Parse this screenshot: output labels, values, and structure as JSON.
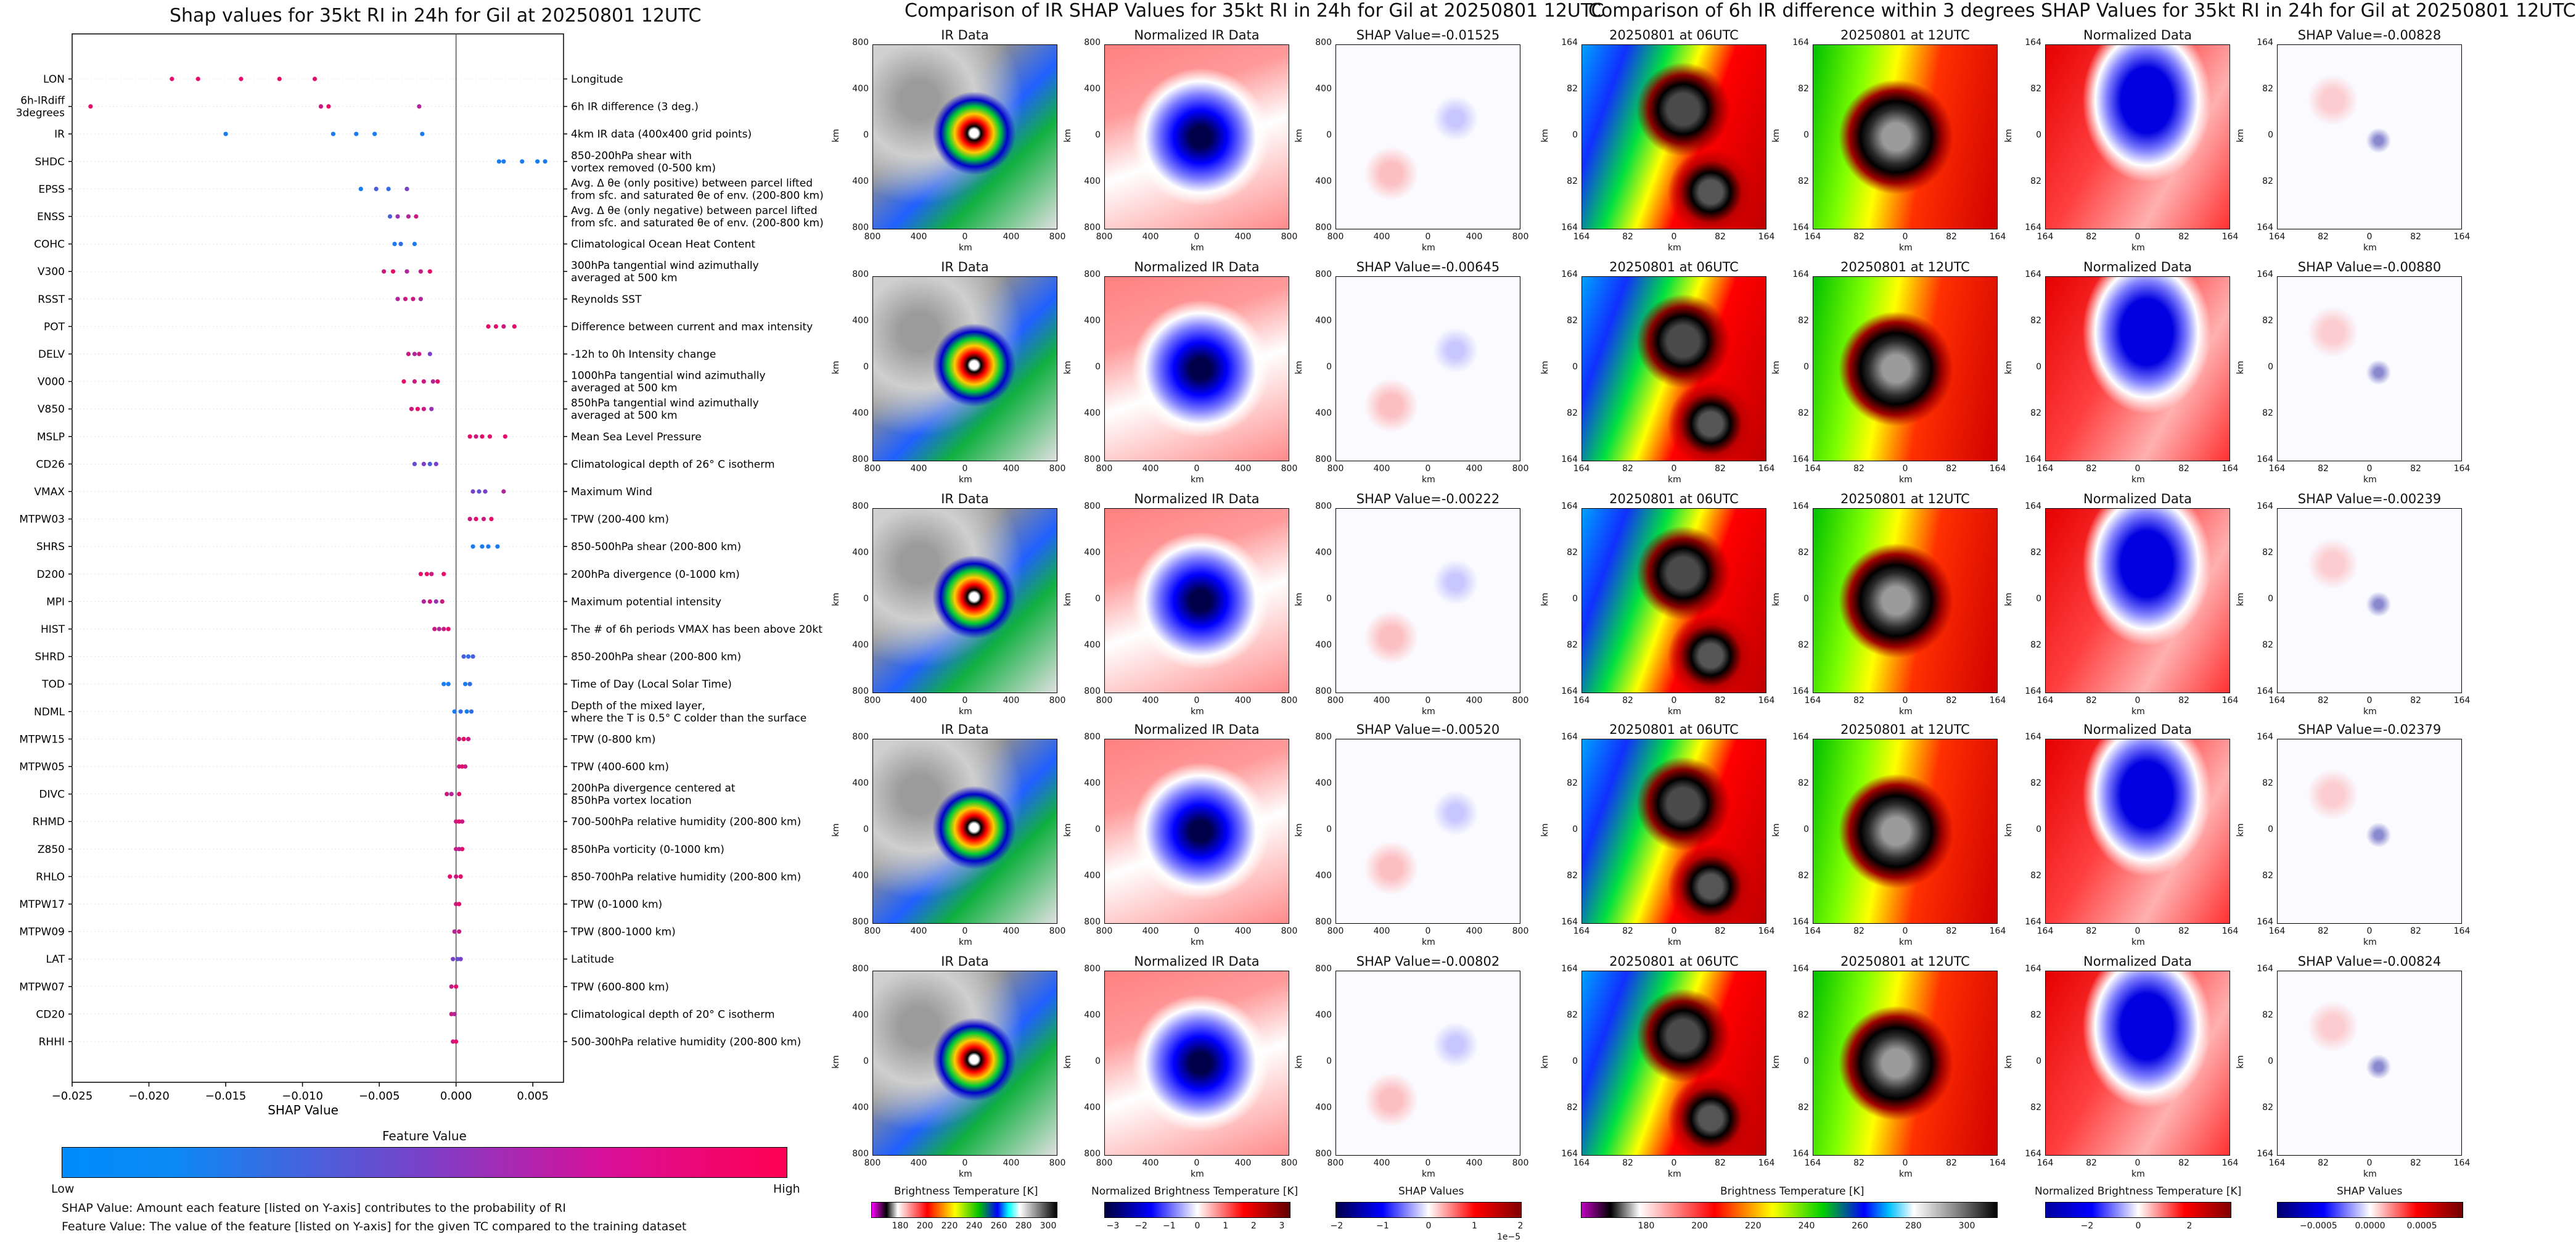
{
  "left": {
    "title": "Shap values for 35kt RI in 24h for Gil at 20250801 12UTC",
    "xlabel": "SHAP Value",
    "xticks": [
      "−0.025",
      "−0.020",
      "−0.015",
      "−0.010",
      "−0.005",
      "0.000",
      "0.005"
    ],
    "features": [
      {
        "code": "LON",
        "desc": "Longitude"
      },
      {
        "code": "6h-IRdiff\n3degrees",
        "desc": "6h IR difference (3 deg.)"
      },
      {
        "code": "IR",
        "desc": "4km IR data (400x400 grid points)"
      },
      {
        "code": "SHDC",
        "desc": "850-200hPa shear with\nvortex removed (0-500 km)"
      },
      {
        "code": "EPSS",
        "desc": "Avg. Δ θe (only positive) between parcel lifted\nfrom sfc. and saturated θe of env. (200-800 km)"
      },
      {
        "code": "ENSS",
        "desc": "Avg. Δ θe (only negative) between parcel lifted\nfrom sfc. and saturated θe of env. (200-800 km)"
      },
      {
        "code": "COHC",
        "desc": "Climatological Ocean Heat Content"
      },
      {
        "code": "V300",
        "desc": "300hPa tangential wind azimuthally\naveraged at 500 km"
      },
      {
        "code": "RSST",
        "desc": "Reynolds SST"
      },
      {
        "code": "POT",
        "desc": "Difference between current and max intensity"
      },
      {
        "code": "DELV",
        "desc": "-12h to 0h Intensity change"
      },
      {
        "code": "V000",
        "desc": "1000hPa tangential wind azimuthally\naveraged at 500 km"
      },
      {
        "code": "V850",
        "desc": "850hPa tangential wind azimuthally\naveraged at 500 km"
      },
      {
        "code": "MSLP",
        "desc": "Mean Sea Level Pressure"
      },
      {
        "code": "CD26",
        "desc": "Climatological depth of 26° C isotherm"
      },
      {
        "code": "VMAX",
        "desc": "Maximum Wind"
      },
      {
        "code": "MTPW03",
        "desc": "TPW (200-400 km)"
      },
      {
        "code": "SHRS",
        "desc": "850-500hPa shear (200-800 km)"
      },
      {
        "code": "D200",
        "desc": "200hPa divergence (0-1000 km)"
      },
      {
        "code": "MPI",
        "desc": "Maximum potential intensity"
      },
      {
        "code": "HIST",
        "desc": "The # of 6h periods VMAX has been above 20kt"
      },
      {
        "code": "SHRD",
        "desc": "850-200hPa shear (200-800 km)"
      },
      {
        "code": "TOD",
        "desc": "Time of Day (Local Solar Time)"
      },
      {
        "code": "NDML",
        "desc": "Depth of the mixed layer,\nwhere the T is 0.5° C colder than the surface"
      },
      {
        "code": "MTPW15",
        "desc": "TPW (0-800 km)"
      },
      {
        "code": "MTPW05",
        "desc": "TPW (400-600 km)"
      },
      {
        "code": "DIVC",
        "desc": "200hPa divergence centered at\n850hPa vortex location"
      },
      {
        "code": "RHMD",
        "desc": "700-500hPa relative humidity (200-800 km)"
      },
      {
        "code": "Z850",
        "desc": "850hPa vorticity (0-1000 km)"
      },
      {
        "code": "RHLO",
        "desc": "850-700hPa relative humidity (200-800 km)"
      },
      {
        "code": "MTPW17",
        "desc": "TPW (0-1000 km)"
      },
      {
        "code": "MTPW09",
        "desc": "TPW (800-1000 km)"
      },
      {
        "code": "LAT",
        "desc": "Latitude"
      },
      {
        "code": "MTPW07",
        "desc": "TPW (600-800 km)"
      },
      {
        "code": "CD20",
        "desc": "Climatological depth of 20° C isotherm"
      },
      {
        "code": "RHHI",
        "desc": "500-300hPa relative humidity (200-800 km)"
      }
    ],
    "feature_value_title": "Feature Value",
    "low_label": "Low",
    "high_label": "High",
    "note1": "SHAP Value: Amount each feature [listed on Y-axis] contributes to the probability of RI",
    "note2": "Feature Value: The value of the feature [listed on Y-axis] for the given TC compared to the training dataset"
  },
  "chart_data": {
    "type": "scatter",
    "title": "Shap values for 35kt RI in 24h for Gil at 20250801 12UTC",
    "xlabel": "SHAP Value",
    "xlim": [
      -0.025,
      0.007
    ],
    "colors": {
      "low": "#008bfb",
      "mid": "#7b40c8",
      "high": "#ff0052"
    },
    "categories": [
      "LON",
      "6h-IRdiff 3degrees",
      "IR",
      "SHDC",
      "EPSS",
      "ENSS",
      "COHC",
      "V300",
      "RSST",
      "POT",
      "DELV",
      "V000",
      "V850",
      "MSLP",
      "CD26",
      "VMAX",
      "MTPW03",
      "SHRS",
      "D200",
      "MPI",
      "HIST",
      "SHRD",
      "TOD",
      "NDML",
      "MTPW15",
      "MTPW05",
      "DIVC",
      "RHMD",
      "Z850",
      "RHLO",
      "MTPW17",
      "MTPW09",
      "LAT",
      "MTPW07",
      "CD20",
      "RHHI"
    ],
    "points": [
      {
        "f": 0,
        "x": [
          -0.0185,
          -0.0168,
          -0.014,
          -0.0115,
          -0.0092
        ],
        "v": [
          0.9,
          0.9,
          0.9,
          0.9,
          0.9
        ]
      },
      {
        "f": 1,
        "x": [
          -0.0238,
          -0.0088,
          -0.0083,
          -0.0024
        ],
        "v": [
          0.9,
          0.8,
          0.9,
          0.7
        ]
      },
      {
        "f": 2,
        "x": [
          -0.015,
          -0.008,
          -0.0065,
          -0.0053,
          -0.0022
        ],
        "v": [
          0.1,
          0.1,
          0.1,
          0.1,
          0.1
        ]
      },
      {
        "f": 3,
        "x": [
          0.0028,
          0.0031,
          0.0043,
          0.0053,
          0.0058
        ],
        "v": [
          0.1,
          0.1,
          0.1,
          0.1,
          0.1
        ]
      },
      {
        "f": 4,
        "x": [
          -0.0062,
          -0.0052,
          -0.0044,
          -0.0032
        ],
        "v": [
          0.1,
          0.3,
          0.2,
          0.5
        ]
      },
      {
        "f": 5,
        "x": [
          -0.0043,
          -0.0038,
          -0.0031,
          -0.0026
        ],
        "v": [
          0.3,
          0.6,
          0.7,
          0.8
        ]
      },
      {
        "f": 6,
        "x": [
          -0.004,
          -0.0036,
          -0.0027
        ],
        "v": [
          0.1,
          0.2,
          0.1
        ]
      },
      {
        "f": 7,
        "x": [
          -0.0047,
          -0.0041,
          -0.0032,
          -0.0023,
          -0.0017
        ],
        "v": [
          0.8,
          0.9,
          0.7,
          0.8,
          0.9
        ]
      },
      {
        "f": 8,
        "x": [
          -0.0038,
          -0.0033,
          -0.0028,
          -0.0023
        ],
        "v": [
          0.7,
          0.8,
          0.8,
          0.7
        ]
      },
      {
        "f": 9,
        "x": [
          0.0021,
          0.0026,
          0.0031,
          0.0038
        ],
        "v": [
          0.9,
          0.9,
          0.8,
          0.9
        ]
      },
      {
        "f": 10,
        "x": [
          -0.0031,
          -0.0027,
          -0.0024,
          -0.0017
        ],
        "v": [
          0.8,
          0.7,
          0.8,
          0.5
        ]
      },
      {
        "f": 11,
        "x": [
          -0.0034,
          -0.0027,
          -0.0021,
          -0.0015,
          -0.0012
        ],
        "v": [
          0.9,
          0.8,
          0.8,
          0.7,
          0.9
        ]
      },
      {
        "f": 12,
        "x": [
          -0.0029,
          -0.0025,
          -0.0021,
          -0.0016
        ],
        "v": [
          0.8,
          0.9,
          0.8,
          0.6
        ]
      },
      {
        "f": 13,
        "x": [
          0.0009,
          0.0013,
          0.0017,
          0.0022,
          0.0032
        ],
        "v": [
          0.9,
          0.8,
          0.9,
          0.9,
          0.9
        ]
      },
      {
        "f": 14,
        "x": [
          -0.0027,
          -0.0021,
          -0.0017,
          -0.0013
        ],
        "v": [
          0.4,
          0.5,
          0.3,
          0.5
        ]
      },
      {
        "f": 15,
        "x": [
          0.0011,
          0.0015,
          0.0019,
          0.0031
        ],
        "v": [
          0.5,
          0.4,
          0.5,
          0.7
        ]
      },
      {
        "f": 16,
        "x": [
          0.0009,
          0.0013,
          0.0018,
          0.0023
        ],
        "v": [
          0.8,
          0.9,
          0.8,
          0.9
        ]
      },
      {
        "f": 17,
        "x": [
          0.0011,
          0.0017,
          0.0021,
          0.0027
        ],
        "v": [
          0.1,
          0.1,
          0.1,
          0.1
        ]
      },
      {
        "f": 18,
        "x": [
          -0.0023,
          -0.0019,
          -0.0016,
          -0.0008
        ],
        "v": [
          0.9,
          0.9,
          0.8,
          0.9
        ]
      },
      {
        "f": 19,
        "x": [
          -0.0021,
          -0.0017,
          -0.0013,
          -0.0009
        ],
        "v": [
          0.7,
          0.8,
          0.6,
          0.8
        ]
      },
      {
        "f": 20,
        "x": [
          -0.0014,
          -0.0011,
          -0.0008,
          -0.0005
        ],
        "v": [
          0.8,
          0.7,
          0.8,
          0.9
        ]
      },
      {
        "f": 21,
        "x": [
          0.0005,
          0.0008,
          0.0011
        ],
        "v": [
          0.3,
          0.2,
          0.3
        ]
      },
      {
        "f": 22,
        "x": [
          -0.0008,
          -0.0005,
          0.0006,
          0.0009
        ],
        "v": [
          0.1,
          0.1,
          0.1,
          0.2
        ]
      },
      {
        "f": 23,
        "x": [
          -0.0001,
          0.0003,
          0.0007,
          0.001
        ],
        "v": [
          0.1,
          0.2,
          0.1,
          0.2
        ]
      },
      {
        "f": 24,
        "x": [
          0.0002,
          0.0005,
          0.0008
        ],
        "v": [
          0.8,
          0.9,
          0.8
        ]
      },
      {
        "f": 25,
        "x": [
          0.0002,
          0.0004,
          0.0006
        ],
        "v": [
          0.8,
          0.9,
          0.8
        ]
      },
      {
        "f": 26,
        "x": [
          -0.0006,
          -0.0003,
          0.0002
        ],
        "v": [
          0.8,
          0.7,
          0.9
        ]
      },
      {
        "f": 27,
        "x": [
          0.0,
          0.0002,
          0.0004
        ],
        "v": [
          0.8,
          0.9,
          0.8
        ]
      },
      {
        "f": 28,
        "x": [
          0.0,
          0.0002,
          0.0004
        ],
        "v": [
          0.8,
          0.7,
          0.9
        ]
      },
      {
        "f": 29,
        "x": [
          -0.0004,
          0.0,
          0.0003
        ],
        "v": [
          0.9,
          0.8,
          0.9
        ]
      },
      {
        "f": 30,
        "x": [
          0.0,
          0.0002
        ],
        "v": [
          0.8,
          0.9
        ]
      },
      {
        "f": 31,
        "x": [
          -0.0001,
          0.0002
        ],
        "v": [
          0.7,
          0.8
        ]
      },
      {
        "f": 32,
        "x": [
          -0.0002,
          0.0001,
          0.0003
        ],
        "v": [
          0.5,
          0.4,
          0.5
        ]
      },
      {
        "f": 33,
        "x": [
          -0.0003,
          0.0
        ],
        "v": [
          0.8,
          0.9
        ]
      },
      {
        "f": 34,
        "x": [
          -0.0003,
          -0.0001
        ],
        "v": [
          0.8,
          0.7
        ]
      },
      {
        "f": 35,
        "x": [
          -0.0002,
          0.0
        ],
        "v": [
          0.8,
          0.9
        ]
      }
    ]
  },
  "middle": {
    "title": "Comparison of IR SHAP Values for 35kt RI in 24h for Gil at 20250801 12UTC",
    "col_titles": [
      "IR Data",
      "Normalized IR Data"
    ],
    "shap_values": [
      "SHAP Value=-0.01525",
      "SHAP Value=-0.00645",
      "SHAP Value=-0.00222",
      "SHAP Value=-0.00520",
      "SHAP Value=-0.00802"
    ],
    "yticks": [
      "800",
      "400",
      "0",
      "400",
      "800"
    ],
    "xticks": [
      "800",
      "400",
      "0",
      "400",
      "800"
    ],
    "axis_label": "km",
    "cbar_labels": [
      "Brightness Temperature [K]",
      "Normalized Brightness Temperature [K]",
      "SHAP Values"
    ],
    "cbar1_ticks": [
      "180",
      "200",
      "220",
      "240",
      "260",
      "280",
      "300"
    ],
    "cbar2_ticks": [
      "−3",
      "−2",
      "−1",
      "0",
      "1",
      "2",
      "3"
    ],
    "cbar3_ticks": [
      "−2",
      "−1",
      "0",
      "1",
      "2"
    ],
    "cbar3_exp": "1e−5"
  },
  "right": {
    "title": "Comparison of 6h IR difference within 3 degrees SHAP Values for 35kt RI in 24h for Gil at 20250801 12UTC",
    "col_titles": [
      "20250801 at 06UTC",
      "20250801 at 12UTC",
      "Normalized Data"
    ],
    "shap_values": [
      "SHAP Value=-0.00828",
      "SHAP Value=-0.00880",
      "SHAP Value=-0.00239",
      "SHAP Value=-0.02379",
      "SHAP Value=-0.00824"
    ],
    "yticks": [
      "164",
      "82",
      "0",
      "82",
      "164"
    ],
    "xticks": [
      "164",
      "82",
      "0",
      "82",
      "164"
    ],
    "axis_label": "km",
    "cbar_labels": [
      "Brightness Temperature [K]",
      "Normalized Brightness Temperature [K]",
      "SHAP Values"
    ],
    "cbar1_ticks": [
      "180",
      "200",
      "220",
      "240",
      "260",
      "280",
      "300"
    ],
    "cbar2_ticks": [
      "−2",
      "0",
      "2"
    ],
    "cbar3_ticks": [
      "−0.0005",
      "0.0000",
      "0.0005"
    ]
  }
}
